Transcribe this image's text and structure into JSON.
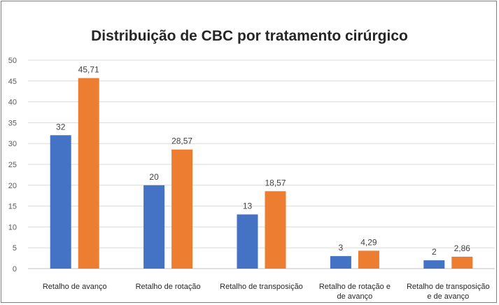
{
  "chart_data": {
    "type": "bar",
    "title": "Distribuição de CBC por tratamento cirúrgico",
    "xlabel": "",
    "ylabel": "",
    "ylim": [
      0,
      50
    ],
    "yticks": [
      0,
      5,
      10,
      15,
      20,
      25,
      30,
      35,
      40,
      45,
      50
    ],
    "grid": true,
    "legend": "none",
    "categories": [
      [
        "Retalho de avanço"
      ],
      [
        "Retalho de rotação"
      ],
      [
        "Retalho de transposição"
      ],
      [
        "Retalho de rotação e",
        "de avanço"
      ],
      [
        "Retalho de transposição",
        "e de avanço"
      ]
    ],
    "series": [
      {
        "values": [
          32,
          20,
          13,
          3,
          2
        ],
        "labels": [
          "32",
          "20",
          "13",
          "3",
          "2"
        ],
        "color": "#4472c4"
      },
      {
        "values": [
          45.71,
          28.57,
          18.57,
          4.29,
          2.86
        ],
        "labels": [
          "45,71",
          "28,57",
          "18,57",
          "4,29",
          "2,86"
        ],
        "color": "#ed7d31"
      }
    ]
  }
}
